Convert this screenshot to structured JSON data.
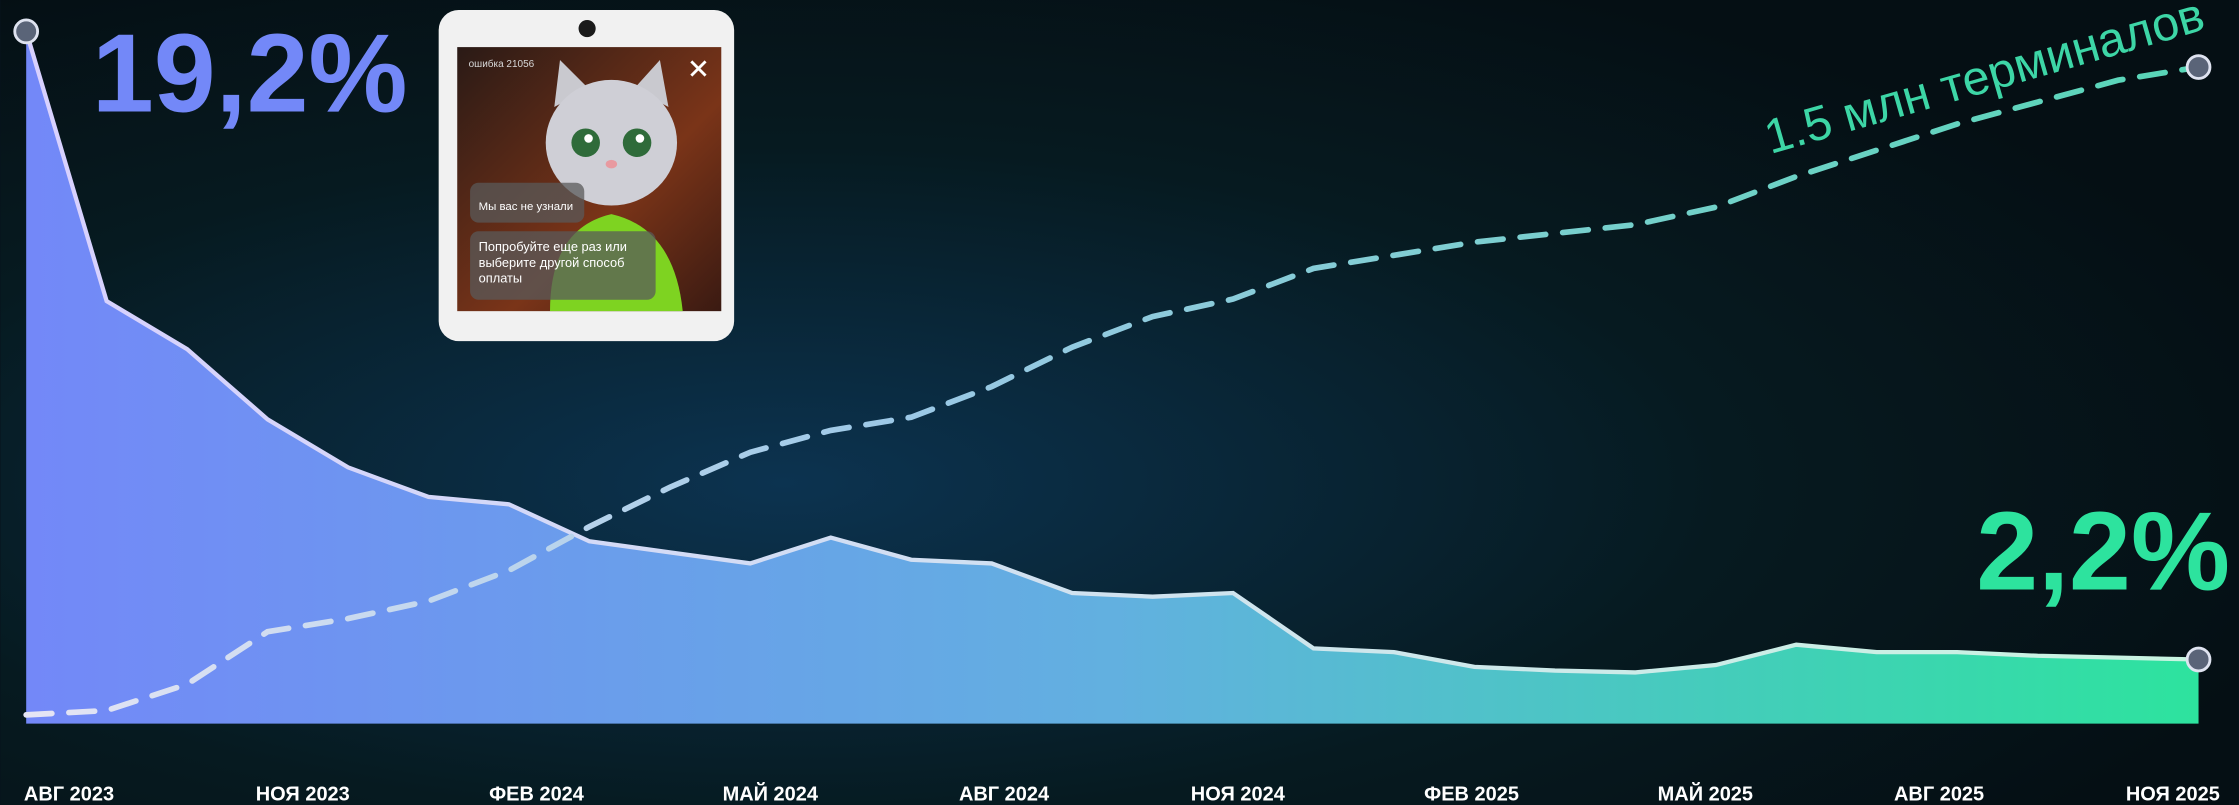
{
  "chart_data": {
    "type": "area-line",
    "categories": [
      "АВГ 2023",
      null,
      null,
      "НОЯ 2023",
      null,
      null,
      "ФЕВ 2024",
      null,
      null,
      "МАЙ 2024",
      null,
      null,
      "АВГ 2024",
      null,
      null,
      "НОЯ 2024",
      null,
      null,
      "ФЕВ 2025",
      null,
      null,
      "МАЙ 2025",
      null,
      null,
      "АВГ 2025",
      null,
      null,
      "НОЯ 2025"
    ],
    "series": [
      {
        "values": [
          19.2,
          11.9,
          10.6,
          8.7,
          7.4,
          6.6,
          6.4,
          5.4,
          5.1,
          4.8,
          5.5,
          4.9,
          4.8,
          4.0,
          3.9,
          4.0,
          2.5,
          2.4,
          2.0,
          1.9,
          1.85,
          2.05,
          2.6,
          2.4,
          2.4,
          2.3,
          2.25,
          2.2
        ],
        "value_labels": [
          "19,2%",
          null,
          null,
          null,
          null,
          null,
          null,
          null,
          null,
          null,
          null,
          null,
          null,
          null,
          null,
          null,
          null,
          null,
          null,
          null,
          null,
          null,
          null,
          null,
          null,
          null,
          null,
          "2,2%"
        ],
        "color": "#7388f8"
      },
      {
        "values": [
          0.02,
          0.03,
          0.09,
          0.21,
          0.24,
          0.28,
          0.35,
          0.45,
          0.54,
          0.62,
          0.67,
          0.7,
          0.77,
          0.86,
          0.93,
          0.97,
          1.04,
          1.07,
          1.1,
          1.12,
          1.14,
          1.18,
          1.25,
          1.31,
          1.37,
          1.42,
          1.47,
          1.5
        ],
        "value_labels": [
          null,
          null,
          null,
          null,
          null,
          null,
          null,
          null,
          null,
          null,
          null,
          null,
          null,
          null,
          null,
          null,
          null,
          null,
          null,
          null,
          null,
          null,
          null,
          null,
          null,
          null,
          null,
          "1.5 млн терминалов"
        ],
        "color": "#3dd6a6"
      }
    ]
  },
  "terminal_screen": {
    "error_code": "ошибка 21056",
    "message": "Мы вас не узнали",
    "hint": [
      "Попробуйте еще раз или",
      "выберите другой способ",
      "оплаты"
    ]
  }
}
